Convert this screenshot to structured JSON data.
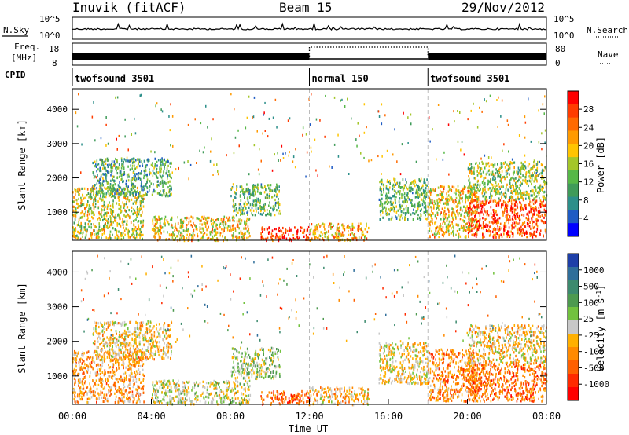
{
  "header": {
    "station": "Inuvik (fitACF)",
    "beam": "Beam 15",
    "date": "29/Nov/2012"
  },
  "noise_panel": {
    "left_label": "N.Sky",
    "left_ticks": [
      "10^5",
      "10^0"
    ],
    "right_ticks": [
      "10^5",
      "10^0"
    ],
    "right_label": "N.Search"
  },
  "freq_panel": {
    "label_line1": "Freq.",
    "label_line2": "[MHz]",
    "left_ticks": [
      "18",
      "8"
    ],
    "right_ticks": [
      "80",
      "0"
    ],
    "right_label": "Nave"
  },
  "cpid": {
    "label": "CPID",
    "segments": [
      {
        "name": "twofsound 3501",
        "start_hour": 0,
        "end_hour": 12.0
      },
      {
        "name": "normal 150",
        "start_hour": 12.0,
        "end_hour": 18.0
      },
      {
        "name": "twofsound 3501",
        "start_hour": 18.0,
        "end_hour": 24
      }
    ]
  },
  "x_axis": {
    "title": "Time UT",
    "ticks": [
      "00:00",
      "04:00",
      "08:00",
      "12:00",
      "16:00",
      "20:00",
      "00:00"
    ]
  },
  "power_panel": {
    "ylabel": "Slant Range [km]",
    "yticks": [
      "4000",
      "3000",
      "2000",
      "1000"
    ],
    "colorbar_label": "Power [dB]",
    "colorbar_ticks": [
      "28",
      "24",
      "20",
      "16",
      "12",
      "8",
      "4"
    ],
    "colors": [
      "#0000ff",
      "#1e5bc4",
      "#2c8f8a",
      "#3f9b59",
      "#56b847",
      "#a4c629",
      "#ffc400",
      "#ff9a00",
      "#ff6a00",
      "#ff3c00",
      "#ff0000"
    ]
  },
  "velocity_panel": {
    "ylabel": "Slant Range [km]",
    "yticks": [
      "4000",
      "3000",
      "2000",
      "1000"
    ],
    "colorbar_label": "Velocity [m s",
    "colorbar_label_sup": "-1",
    "colorbar_label_end": "]",
    "colorbar_ticks": [
      "1000",
      "500",
      "100",
      "25",
      "-25",
      "-100",
      "-500",
      "-1000"
    ],
    "colors": [
      "#1e3fa8",
      "#2f6e9a",
      "#3c8a6e",
      "#4d9a4f",
      "#72c23e",
      "#c8c8c8",
      "#ffb000",
      "#ff8a00",
      "#ff6000",
      "#ff2a00",
      "#ff0000"
    ]
  },
  "chart_data": {
    "type": "heatmap",
    "title": "Inuvik (fitACF) Beam 15 29/Nov/2012",
    "xlabel": "Time UT",
    "ylabel": "Slant Range [km]",
    "xlim_hours": [
      0,
      24
    ],
    "ylim_km": [
      180,
      4600
    ],
    "regions": [
      {
        "t0": 0.0,
        "t1": 3.6,
        "r0": 250,
        "r1": 1750,
        "power_mean": 16,
        "velocity_mean": -300
      },
      {
        "t0": 1.0,
        "t1": 5.0,
        "r0": 1500,
        "r1": 2600,
        "power_mean": 10,
        "velocity_mean": -150
      },
      {
        "t0": 4.0,
        "t1": 9.0,
        "r0": 200,
        "r1": 900,
        "power_mean": 18,
        "velocity_mean": 20
      },
      {
        "t0": 8.0,
        "t1": 10.5,
        "r0": 950,
        "r1": 1850,
        "power_mean": 12,
        "velocity_mean": 120
      },
      {
        "t0": 9.5,
        "t1": 12.0,
        "r0": 200,
        "r1": 600,
        "power_mean": 27,
        "velocity_mean": -600
      },
      {
        "t0": 12.0,
        "t1": 15.0,
        "r0": 200,
        "r1": 700,
        "power_mean": 20,
        "velocity_mean": -200
      },
      {
        "t0": 15.5,
        "t1": 18.0,
        "r0": 800,
        "r1": 2000,
        "power_mean": 12,
        "velocity_mean": -100
      },
      {
        "t0": 18.0,
        "t1": 20.5,
        "r0": 300,
        "r1": 1800,
        "power_mean": 18,
        "velocity_mean": -400
      },
      {
        "t0": 20.0,
        "t1": 24.0,
        "r0": 300,
        "r1": 1400,
        "power_mean": 26,
        "velocity_mean": -500
      },
      {
        "t0": 20.0,
        "t1": 24.0,
        "r0": 1400,
        "r1": 2500,
        "power_mean": 14,
        "velocity_mean": -150
      }
    ],
    "power_range_db": [
      0,
      30
    ],
    "velocity_range_ms": [
      -1000,
      1000
    ]
  }
}
